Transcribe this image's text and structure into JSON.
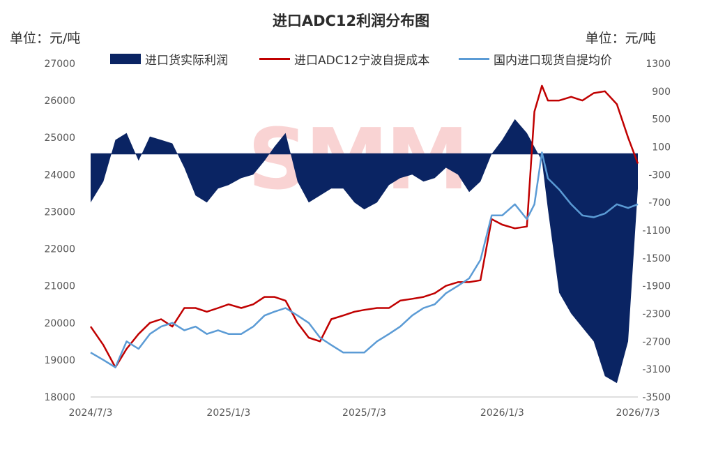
{
  "chart_data": {
    "type": "line",
    "title": "进口ADC12利润分布图",
    "left_unit": "单位：元/吨",
    "right_unit": "单位：元/吨",
    "watermark": "SMM",
    "colors": {
      "profit": "#0a2463",
      "cost": "#c00000",
      "price": "#5b9bd5"
    },
    "x_ticks": [
      "2024/7/3",
      "2025/1/3",
      "2025/7/3",
      "2026/1/3",
      "2026/7/3"
    ],
    "y_left": {
      "min": 18000,
      "max": 27000,
      "ticks": [
        27000,
        26000,
        25000,
        24000,
        23000,
        22000,
        21000,
        20000,
        19000,
        18000
      ]
    },
    "y_right": {
      "min": -3500,
      "max": 1300,
      "ticks": [
        1300,
        900,
        500,
        100,
        -300,
        -700,
        -1100,
        -1500,
        -1900,
        -2300,
        -2700,
        -3100,
        -3500
      ]
    },
    "series": [
      {
        "name": "进口货实际利润",
        "axis": "right",
        "kind": "area",
        "x": [
          "2024/7/3",
          "2024/7/20",
          "2024/8/5",
          "2024/8/20",
          "2024/9/5",
          "2024/9/20",
          "2024/10/5",
          "2024/10/20",
          "2024/11/5",
          "2024/11/20",
          "2024/12/5",
          "2024/12/20",
          "2025/1/3",
          "2025/1/20",
          "2025/2/5",
          "2025/2/20",
          "2025/3/5",
          "2025/3/20",
          "2025/4/5",
          "2025/4/20",
          "2025/5/5",
          "2025/5/20",
          "2025/6/5",
          "2025/6/20",
          "2025/7/3",
          "2025/7/20",
          "2025/8/5",
          "2025/8/20",
          "2025/9/5",
          "2025/9/20",
          "2025/10/5",
          "2025/10/20",
          "2025/11/5",
          "2025/11/20",
          "2025/12/5",
          "2025/12/20",
          "2026/1/3",
          "2026/1/20",
          "2026/2/5",
          "2026/2/15",
          "2026/2/25",
          "2026/3/5",
          "2026/3/20",
          "2026/4/5",
          "2026/4/20",
          "2026/5/5",
          "2026/5/20",
          "2026/6/5",
          "2026/6/20",
          "2026/7/3"
        ],
        "values": [
          -700,
          -400,
          200,
          300,
          -100,
          250,
          200,
          150,
          -200,
          -600,
          -700,
          -500,
          -450,
          -350,
          -300,
          -100,
          100,
          300,
          -400,
          -700,
          -600,
          -500,
          -500,
          -700,
          -800,
          -700,
          -450,
          -350,
          -300,
          -400,
          -350,
          -200,
          -300,
          -550,
          -400,
          0,
          200,
          500,
          300,
          100,
          -100,
          -800,
          -2000,
          -2300,
          -2500,
          -2700,
          -3200,
          -3300,
          -2700,
          -500
        ]
      },
      {
        "name": "进口ADC12宁波自提成本",
        "axis": "left",
        "kind": "line",
        "x": [
          "2024/7/3",
          "2024/7/20",
          "2024/8/5",
          "2024/8/20",
          "2024/9/5",
          "2024/9/20",
          "2024/10/5",
          "2024/10/20",
          "2024/11/5",
          "2024/11/20",
          "2024/12/5",
          "2024/12/20",
          "2025/1/3",
          "2025/1/20",
          "2025/2/5",
          "2025/2/20",
          "2025/3/5",
          "2025/3/20",
          "2025/4/5",
          "2025/4/20",
          "2025/5/5",
          "2025/5/20",
          "2025/6/5",
          "2025/6/20",
          "2025/7/3",
          "2025/7/20",
          "2025/8/5",
          "2025/8/20",
          "2025/9/5",
          "2025/9/20",
          "2025/10/5",
          "2025/10/20",
          "2025/11/5",
          "2025/11/20",
          "2025/12/5",
          "2025/12/20",
          "2026/1/3",
          "2026/1/20",
          "2026/2/5",
          "2026/2/15",
          "2026/2/25",
          "2026/3/5",
          "2026/3/20",
          "2026/4/5",
          "2026/4/20",
          "2026/5/5",
          "2026/5/20",
          "2026/6/5",
          "2026/6/20",
          "2026/7/3"
        ],
        "values": [
          19900,
          19400,
          18800,
          19300,
          19700,
          20000,
          20100,
          19900,
          20400,
          20400,
          20300,
          20400,
          20500,
          20400,
          20500,
          20700,
          20700,
          20600,
          20000,
          19600,
          19500,
          20100,
          20200,
          20300,
          20350,
          20400,
          20400,
          20600,
          20650,
          20700,
          20800,
          21000,
          21100,
          21100,
          21150,
          22800,
          22650,
          22550,
          22600,
          25700,
          26400,
          26000,
          26000,
          26100,
          26000,
          26200,
          26250,
          25900,
          25000,
          24300
        ]
      },
      {
        "name": "国内进口现货自提均价",
        "axis": "left",
        "kind": "line",
        "x": [
          "2024/7/3",
          "2024/7/20",
          "2024/8/5",
          "2024/8/20",
          "2024/9/5",
          "2024/9/20",
          "2024/10/5",
          "2024/10/20",
          "2024/11/5",
          "2024/11/20",
          "2024/12/5",
          "2024/12/20",
          "2025/1/3",
          "2025/1/20",
          "2025/2/5",
          "2025/2/20",
          "2025/3/5",
          "2025/3/20",
          "2025/4/5",
          "2025/4/20",
          "2025/5/5",
          "2025/5/20",
          "2025/6/5",
          "2025/6/20",
          "2025/7/3",
          "2025/7/20",
          "2025/8/5",
          "2025/8/20",
          "2025/9/5",
          "2025/9/20",
          "2025/10/5",
          "2025/10/20",
          "2025/11/5",
          "2025/11/20",
          "2025/12/5",
          "2025/12/20",
          "2026/1/3",
          "2026/1/20",
          "2026/2/5",
          "2026/2/15",
          "2026/2/25",
          "2026/3/5",
          "2026/3/20",
          "2026/4/5",
          "2026/4/20",
          "2026/5/5",
          "2026/5/20",
          "2026/6/5",
          "2026/6/20",
          "2026/7/3"
        ],
        "values": [
          19200,
          19000,
          18800,
          19500,
          19300,
          19700,
          19900,
          20000,
          19800,
          19900,
          19700,
          19800,
          19700,
          19700,
          19900,
          20200,
          20300,
          20400,
          20200,
          20000,
          19600,
          19400,
          19200,
          19200,
          19200,
          19500,
          19700,
          19900,
          20200,
          20400,
          20500,
          20800,
          21000,
          21200,
          21700,
          22900,
          22900,
          23200,
          22800,
          23200,
          24600,
          23900,
          23600,
          23200,
          22900,
          22850,
          22950,
          23200,
          23100,
          23200
        ]
      }
    ]
  }
}
